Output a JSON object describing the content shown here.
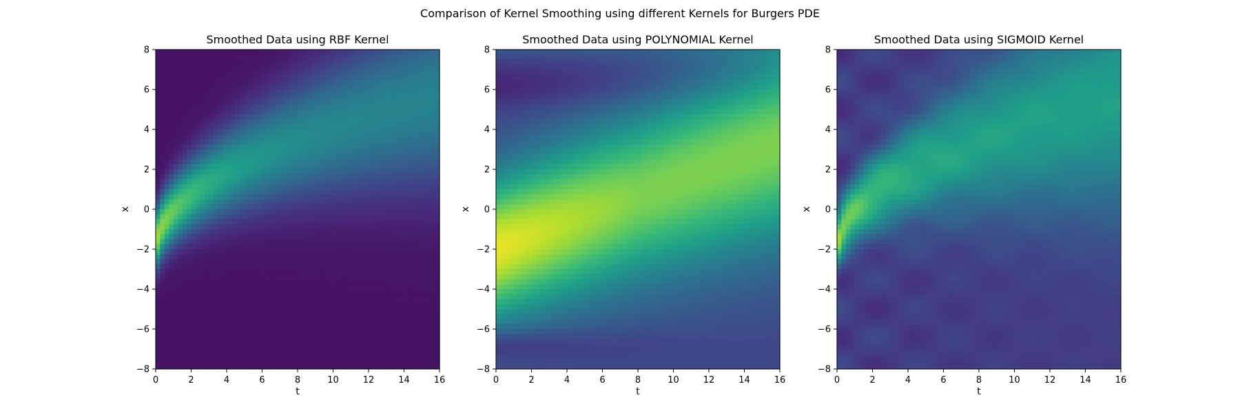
{
  "figure": {
    "suptitle": "Comparison of Kernel Smoothing using different Kernels for Burgers PDE"
  },
  "chart_data": [
    {
      "type": "heatmap",
      "title": "Smoothed Data using RBF Kernel",
      "kernel": "rbf",
      "xlabel": "t",
      "ylabel": "x",
      "xlim": [
        0,
        16
      ],
      "ylim": [
        -8,
        8
      ],
      "xticks": [
        0,
        2,
        4,
        6,
        8,
        10,
        12,
        14,
        16
      ],
      "yticks": [
        -8,
        -6,
        -4,
        -2,
        0,
        2,
        4,
        6,
        8
      ],
      "colormap": "viridis"
    },
    {
      "type": "heatmap",
      "title": "Smoothed Data using POLYNOMIAL Kernel",
      "kernel": "polynomial",
      "xlabel": "t",
      "ylabel": "x",
      "xlim": [
        0,
        16
      ],
      "ylim": [
        -8,
        8
      ],
      "xticks": [
        0,
        2,
        4,
        6,
        8,
        10,
        12,
        14,
        16
      ],
      "yticks": [
        -8,
        -6,
        -4,
        -2,
        0,
        2,
        4,
        6,
        8
      ],
      "colormap": "viridis"
    },
    {
      "type": "heatmap",
      "title": "Smoothed Data using SIGMOID Kernel",
      "kernel": "sigmoid",
      "xlabel": "t",
      "ylabel": "x",
      "xlim": [
        0,
        16
      ],
      "ylim": [
        -8,
        8
      ],
      "xticks": [
        0,
        2,
        4,
        6,
        8,
        10,
        12,
        14,
        16
      ],
      "yticks": [
        -8,
        -6,
        -4,
        -2,
        0,
        2,
        4,
        6,
        8
      ],
      "colormap": "viridis"
    }
  ]
}
